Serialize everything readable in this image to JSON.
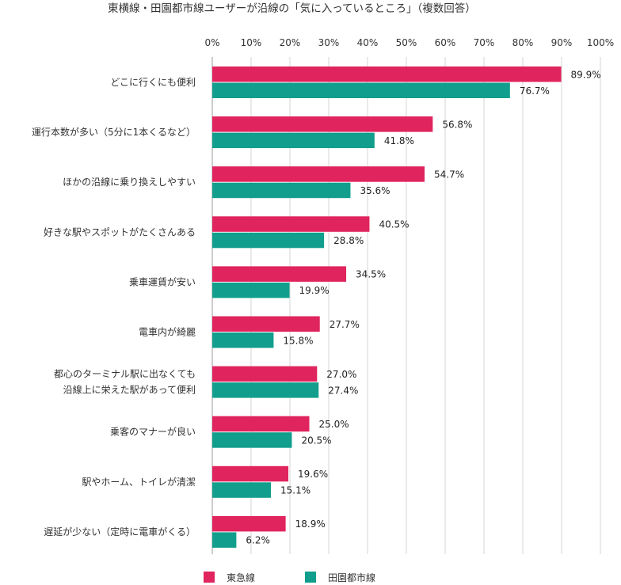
{
  "chart_data": {
    "type": "bar",
    "orientation": "horizontal",
    "title": "東横線・田園都市線ユーザーが沿線の「気に入っているところ」（複数回答）",
    "xlim": [
      0,
      100
    ],
    "ticks": [
      "0%",
      "10%",
      "20%",
      "30%",
      "40%",
      "50%",
      "60%",
      "70%",
      "80%",
      "90%",
      "100%"
    ],
    "grid": true,
    "legend_position": "bottom-left",
    "categories": [
      [
        "どこに行くにも便利"
      ],
      [
        "運行本数が多い（5分に1本くるなど）"
      ],
      [
        "ほかの沿線に乗り換えしやすい"
      ],
      [
        "好きな駅やスポットがたくさんある"
      ],
      [
        "乗車運賃が安い"
      ],
      [
        "電車内が綺麗"
      ],
      [
        "都心のターミナル駅に出なくても",
        "沿線上に栄えた駅があって便利"
      ],
      [
        "乗客のマナーが良い"
      ],
      [
        "駅やホーム、トイレが清潔"
      ],
      [
        "遅延が少ない（定時に電車がくる）"
      ]
    ],
    "series": [
      {
        "name": "東急線",
        "color": "#e0245e",
        "values": [
          89.9,
          56.8,
          54.7,
          40.5,
          34.5,
          27.7,
          27.0,
          25.0,
          19.6,
          18.9
        ],
        "labels": [
          "89.9%",
          "56.8%",
          "54.7%",
          "40.5%",
          "34.5%",
          "27.7%",
          "27.0%",
          "25.0%",
          "19.6%",
          "18.9%"
        ]
      },
      {
        "name": "田園都市線",
        "color": "#119e8c",
        "values": [
          76.7,
          41.8,
          35.6,
          28.8,
          19.9,
          15.8,
          27.4,
          20.5,
          15.1,
          6.2
        ],
        "labels": [
          "76.7%",
          "41.8%",
          "35.6%",
          "28.8%",
          "19.9%",
          "15.8%",
          "27.4%",
          "20.5%",
          "15.1%",
          "6.2%"
        ]
      }
    ]
  }
}
